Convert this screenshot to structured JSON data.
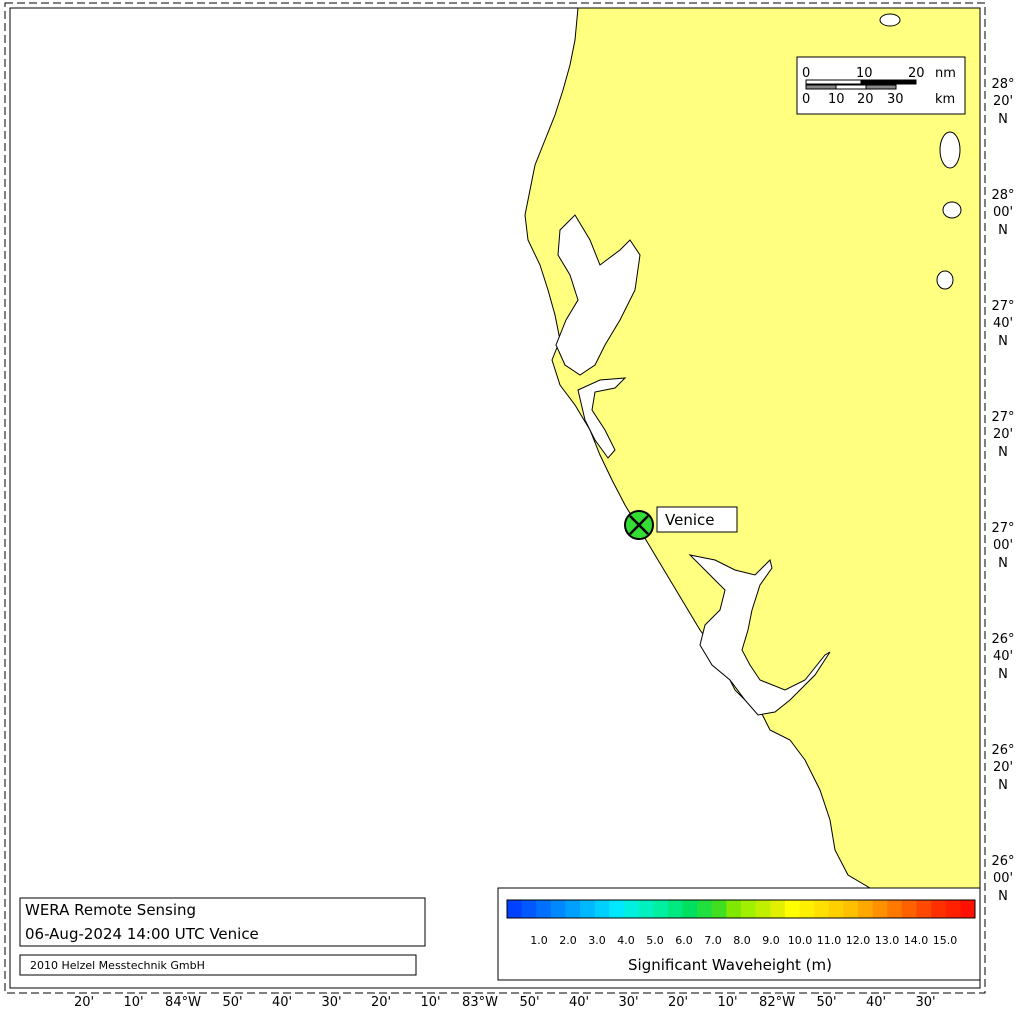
{
  "map": {
    "station": {
      "name": "Venice"
    },
    "scale_bar": {
      "nm_ticks": [
        "0",
        "10",
        "20"
      ],
      "nm_unit": "nm",
      "km_ticks": [
        "0",
        "10",
        "20",
        "30"
      ],
      "km_unit": "km"
    },
    "lat_labels": [
      {
        "deg": "28°",
        "min": "20'",
        "hem": "N"
      },
      {
        "deg": "28°",
        "min": "00'",
        "hem": "N"
      },
      {
        "deg": "27°",
        "min": "40'",
        "hem": "N"
      },
      {
        "deg": "27°",
        "min": "20'",
        "hem": "N"
      },
      {
        "deg": "27°",
        "min": "00'",
        "hem": "N"
      },
      {
        "deg": "26°",
        "min": "40'",
        "hem": "N"
      },
      {
        "deg": "26°",
        "min": "20'",
        "hem": "N"
      },
      {
        "deg": "26°",
        "min": "00'",
        "hem": "N"
      }
    ],
    "lon_labels": [
      "20'",
      "10'",
      "84°W",
      "50'",
      "40'",
      "30'",
      "20'",
      "10'",
      "83°W",
      "50'",
      "40'",
      "30'",
      "20'",
      "10'",
      "82°W",
      "50'",
      "40'",
      "30'"
    ],
    "colors": {
      "land": "#ffff80",
      "water": "#ffffff",
      "station": "#33dd33"
    }
  },
  "info": {
    "title": "WERA Remote Sensing",
    "subtitle": "06-Aug-2024 14:00 UTC  Venice",
    "copyright": "2010 Helzel Messtechnik GmbH"
  },
  "legend": {
    "title": "Significant Waveheight (m)",
    "ticks": [
      "1.0",
      "2.0",
      "3.0",
      "4.0",
      "5.0",
      "6.0",
      "7.0",
      "8.0",
      "9.0",
      "10.0",
      "11.0",
      "12.0",
      "13.0",
      "14.0",
      "15.0"
    ],
    "colors": [
      "#0040ff",
      "#0058ff",
      "#0070ff",
      "#0088ff",
      "#00a0ff",
      "#00b8ff",
      "#00d0ff",
      "#00e8ff",
      "#00f0e0",
      "#00f0c0",
      "#00f0a0",
      "#00e880",
      "#00e060",
      "#20e040",
      "#40e020",
      "#80e800",
      "#a0f000",
      "#c0f000",
      "#e0f000",
      "#ffff00",
      "#fff000",
      "#ffe000",
      "#ffd000",
      "#ffc000",
      "#ffa800",
      "#ff9000",
      "#ff7800",
      "#ff6000",
      "#ff4800",
      "#ff3000",
      "#ff2000",
      "#ff1000"
    ]
  }
}
